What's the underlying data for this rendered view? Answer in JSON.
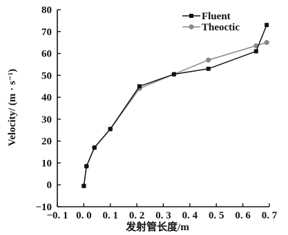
{
  "chart_data": {
    "type": "line",
    "title": "",
    "xlabel": "发射管长度/m",
    "ylabel": "Velocity/ (m · s⁻¹)",
    "xlim": [
      -0.1,
      0.7
    ],
    "ylim": [
      -10,
      80
    ],
    "xticks": [
      -0.1,
      0.0,
      0.1,
      0.2,
      0.3,
      0.4,
      0.5,
      0.6,
      0.7
    ],
    "xtick_labels": [
      "−0. 1",
      "0. 0",
      "0. 1",
      "0. 2",
      "0. 3",
      "0. 4",
      "0. 5",
      "0. 6",
      "0. 7"
    ],
    "yticks": [
      -10,
      0,
      10,
      20,
      30,
      40,
      50,
      60,
      70,
      80
    ],
    "ytick_labels": [
      "−10",
      "0",
      "10",
      "20",
      "30",
      "40",
      "50",
      "60",
      "70",
      "80"
    ],
    "grid": false,
    "legend_position": "top-right",
    "series": [
      {
        "name": "Fluent",
        "marker": "square",
        "color": "#111111",
        "x": [
          0.0,
          0.01,
          0.04,
          0.1,
          0.21,
          0.34,
          0.47,
          0.65,
          0.69
        ],
        "y": [
          -0.5,
          8.5,
          17,
          25.5,
          45,
          50.5,
          53,
          61,
          73
        ]
      },
      {
        "name": "Theoctic",
        "marker": "circle",
        "color": "#888888",
        "x": [
          0.0,
          0.01,
          0.04,
          0.1,
          0.21,
          0.34,
          0.47,
          0.65,
          0.69
        ],
        "y": [
          -0.5,
          8.5,
          17,
          25.5,
          44,
          50.5,
          57,
          63.5,
          65
        ]
      }
    ]
  }
}
